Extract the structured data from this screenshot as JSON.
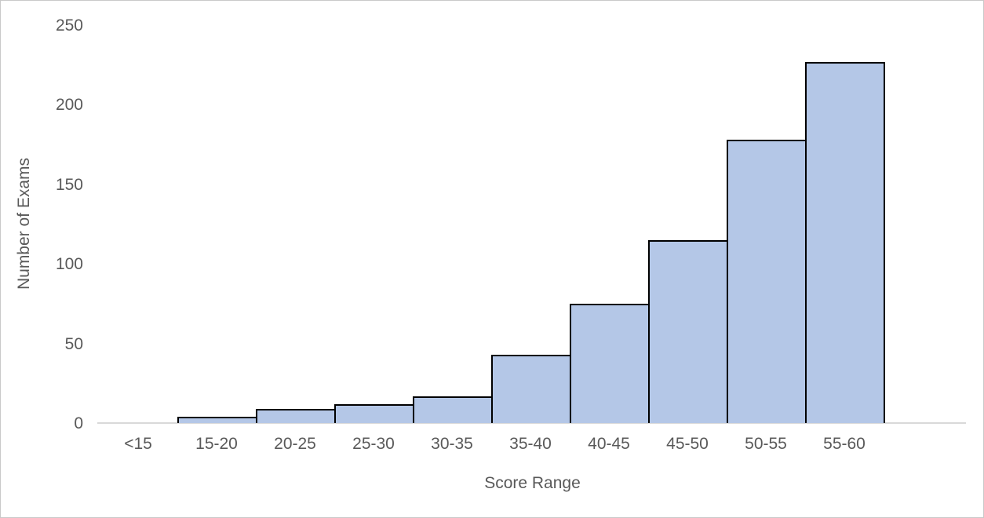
{
  "chart_data": {
    "type": "bar",
    "subtype": "histogram",
    "title": "",
    "categories": [
      "<15",
      "15-20",
      "20-25",
      "25-30",
      "30-35",
      "35-40",
      "40-45",
      "45-50",
      "50-55",
      "55-60"
    ],
    "values": [
      0,
      4,
      9,
      12,
      17,
      43,
      75,
      115,
      178,
      227
    ],
    "xlabel": "Score Range",
    "ylabel": "Number of Exams",
    "ylim": [
      0,
      250
    ],
    "yticks": [
      0,
      50,
      100,
      150,
      200,
      250
    ],
    "grid": false,
    "legend": false,
    "bar_fill_color": "#b4c7e7",
    "bar_border_color": "#000000",
    "axis_line_color": "#d9d9d9",
    "text_color": "#595959",
    "background_color": "#ffffff"
  }
}
